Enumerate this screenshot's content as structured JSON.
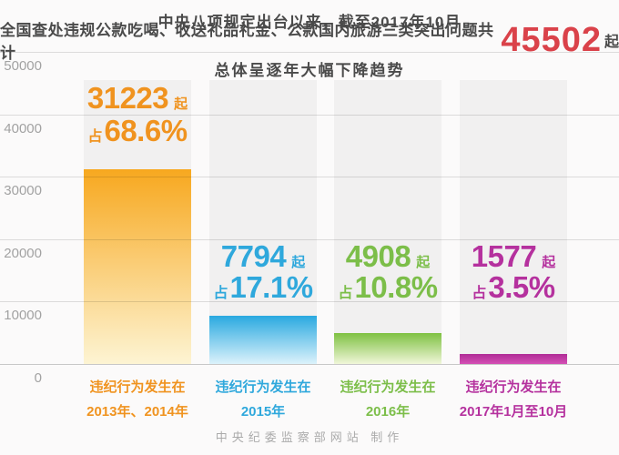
{
  "title": {
    "line1": "中央八项规定出台以来，截至2017年10月",
    "line2_prefix": "全国查处违规公款吃喝、收送礼品礼金、公款国内旅游三类突出问题共计",
    "total_number": "45502",
    "total_unit": "起",
    "line3": "总体呈逐年大幅下降趋势",
    "accent_color": "#da424a",
    "text_color": "#4a4a4a"
  },
  "y_axis": {
    "ticks": [
      "50000",
      "40000",
      "30000",
      "20000",
      "10000",
      "0"
    ]
  },
  "chart_data": {
    "type": "bar",
    "title": "中央八项规定出台以来，截至2017年10月，全国查处违规公款吃喝、收送礼品礼金、公款国内旅游三类突出问题共计45502起，总体呈逐年大幅下降趋势",
    "ylim": [
      0,
      50000
    ],
    "grid": true,
    "legend": false,
    "total": 45502,
    "categories": [
      "违纪行为发生在2013年、2014年",
      "违纪行为发生在2015年",
      "违纪行为发生在2016年",
      "违纪行为发生在2017年1月至10月"
    ],
    "values": [
      31223,
      7794,
      4908,
      1577
    ],
    "percents": [
      "68.6%",
      "17.1%",
      "10.8%",
      "3.5%"
    ],
    "background_column_color": "#f1f0f0",
    "bars": [
      {
        "value": 31223,
        "unit": "起",
        "pct_prefix": "占",
        "percent": "68.6%",
        "cat_line1": "违纪行为发生在",
        "cat_line2": "2013年、2014年",
        "color": "#f0931f",
        "bar_top": "#f7a81f",
        "bar_bottom": "#fdf4d3"
      },
      {
        "value": 7794,
        "unit": "起",
        "pct_prefix": "占",
        "percent": "17.1%",
        "cat_line1": "违纪行为发生在",
        "cat_line2": "2015年",
        "color": "#2fa8dc",
        "bar_top": "#2aa9e0",
        "bar_bottom": "#dcf2fb"
      },
      {
        "value": 4908,
        "unit": "起",
        "pct_prefix": "占",
        "percent": "10.8%",
        "cat_line1": "违纪行为发生在",
        "cat_line2": "2016年",
        "color": "#7cbe49",
        "bar_top": "#7fc142",
        "bar_bottom": "#f0f6d9"
      },
      {
        "value": 1577,
        "unit": "起",
        "pct_prefix": "占",
        "percent": "3.5%",
        "cat_line1": "违纪行为发生在",
        "cat_line2": "2017年1月至10月",
        "color": "#b5319e",
        "bar_top": "#b02c96",
        "bar_bottom": "#d550b5"
      }
    ]
  },
  "footer": {
    "credit": "中央纪委监察部网站 制作"
  }
}
